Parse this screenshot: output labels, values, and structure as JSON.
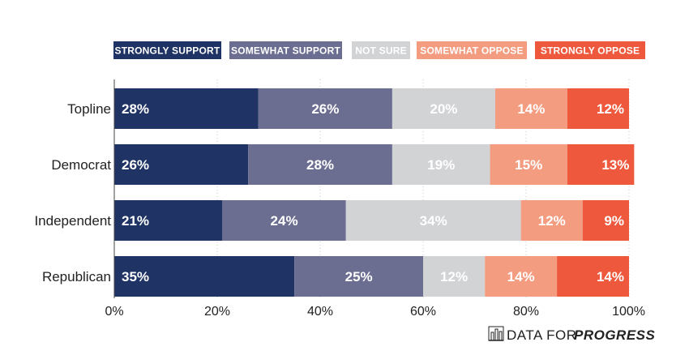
{
  "chart_data": {
    "type": "bar",
    "orientation": "horizontal",
    "stacked": true,
    "categories": [
      "Topline",
      "Democrat",
      "Independent",
      "Republican"
    ],
    "series": [
      {
        "name": "STRONGLY SUPPORT",
        "color": "#1f3464",
        "values": [
          28,
          26,
          21,
          35
        ],
        "labels": [
          "28%",
          "26%",
          "21%",
          "35%"
        ]
      },
      {
        "name": "SOMEWHAT SUPPORT",
        "color": "#6b6e91",
        "values": [
          26,
          28,
          24,
          25
        ],
        "labels": [
          "26%",
          "28%",
          "24%",
          "25%"
        ]
      },
      {
        "name": "NOT SURE",
        "color": "#d2d3d5",
        "values": [
          20,
          19,
          34,
          12
        ],
        "labels": [
          "20%",
          "19%",
          "34%",
          "12%"
        ]
      },
      {
        "name": "SOMEWHAT OPPOSE",
        "color": "#f49c80",
        "values": [
          14,
          15,
          12,
          14
        ],
        "labels": [
          "14%",
          "15%",
          "12%",
          "14%"
        ]
      },
      {
        "name": "STRONGLY OPPOSE",
        "color": "#ee583c",
        "values": [
          12,
          13,
          9,
          14
        ],
        "labels": [
          "12%",
          "13%",
          "9%",
          "14%"
        ]
      }
    ],
    "x_ticks": [
      "0%",
      "20%",
      "40%",
      "60%",
      "80%",
      "100%"
    ],
    "xlim": [
      0,
      100
    ],
    "grid": "vertical dotted",
    "legend_position": "top"
  },
  "brand": {
    "prefix": "DATA FOR",
    "emphasis": "PROGRESS"
  }
}
